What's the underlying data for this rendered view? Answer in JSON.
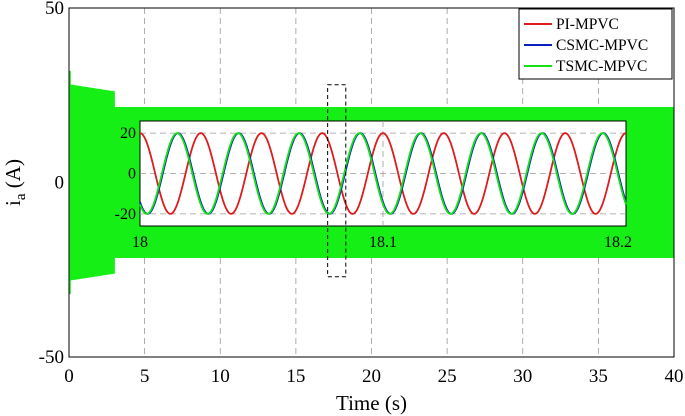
{
  "chart_data": {
    "type": "line",
    "xlabel": "Time (s)",
    "ylabel_main": "i",
    "ylabel_sub": "a",
    "ylabel_unit": " (A)",
    "xlim": [
      0,
      40
    ],
    "ylim": [
      -50,
      50
    ],
    "x_ticks": [
      "0",
      "5",
      "10",
      "15",
      "20",
      "25",
      "30",
      "35",
      "40"
    ],
    "y_ticks": [
      "50",
      "0",
      "-50"
    ],
    "grid": true,
    "legend_position": "top-right",
    "series": [
      {
        "name": "PI-MPVC",
        "color": "#dd1c1c"
      },
      {
        "name": "CSMC-MPVC",
        "color": "#0b1fbf"
      },
      {
        "name": "TSMC-MPVC",
        "color": "#16e016"
      }
    ],
    "main_signal": {
      "color": "#15ef15",
      "startup_peak": 32,
      "startup_end_s": 3.0,
      "startup_envelope": [
        28,
        26
      ],
      "steady_amplitude": 21.5,
      "frequency_hz": 50
    },
    "zoom_window": {
      "x_start": 17.1,
      "x_end": 18.3,
      "y_min": -27,
      "y_max": 28
    },
    "inset": {
      "xlim": [
        18,
        18.2
      ],
      "ylim": [
        -26,
        26
      ],
      "x_ticks": [
        "18",
        "18.1",
        "18.2"
      ],
      "y_ticks": [
        "20",
        "0",
        "-20"
      ],
      "amplitude": 20,
      "frequency_hz": 40,
      "phases_deg": {
        "PI-MPVC": 90,
        "CSMC-MPVC": -135,
        "TSMC-MPVC": -130
      }
    }
  }
}
